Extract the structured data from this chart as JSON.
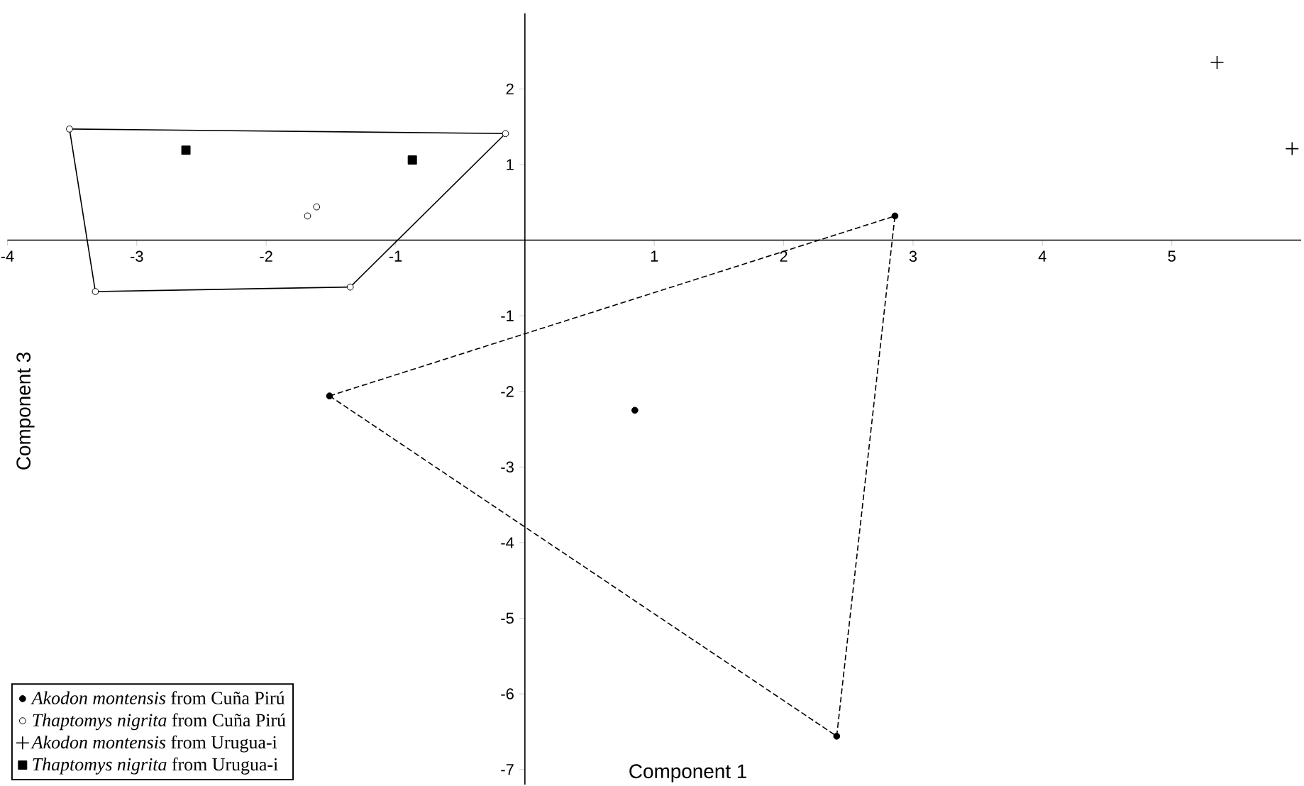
{
  "chart_data": {
    "type": "scatter",
    "xlabel": "Component 1",
    "ylabel": "Component 3",
    "xlim": [
      -4,
      6
    ],
    "ylim": [
      -7.2,
      3
    ],
    "xticks": [
      -4,
      -3,
      -2,
      -1,
      1,
      2,
      3,
      4,
      5
    ],
    "yticks": [
      -7,
      -6,
      -5,
      -4,
      -3,
      -2,
      -1,
      1,
      2
    ],
    "legend": "bottom left",
    "grid": false,
    "series": [
      {
        "name": "*Akodon montensis* from Cuña Pirú",
        "marker": "circle",
        "color": "#000000",
        "x": [
          2.86,
          -1.51,
          0.85,
          2.41
        ],
        "values": [
          0.32,
          -2.06,
          -2.25,
          -6.56
        ]
      },
      {
        "name": "*Thaptomys nigrita* from Cuña Pirú",
        "marker": "circle",
        "color": "#ffffff",
        "x": [
          -3.52,
          -0.15,
          -3.32,
          -1.35,
          -1.68,
          -1.61
        ],
        "values": [
          1.47,
          1.41,
          -0.68,
          -0.62,
          0.32,
          0.44
        ]
      },
      {
        "name": "*Akodon montensis* from Urugua-i",
        "marker": "cross",
        "color": "#000000",
        "x": [
          5.35,
          5.93
        ],
        "values": [
          2.35,
          1.21
        ]
      },
      {
        "name": "*Thaptomys nigrita*  from Urugua-i",
        "marker": "square",
        "color": "#000000",
        "x": [
          -2.62,
          -0.87
        ],
        "values": [
          1.19,
          1.06
        ]
      },
      {
        "type": "line",
        "line_style": "dashed",
        "color": "#000000",
        "x": [
          -1.51,
          2.86
        ],
        "values": [
          -2.06,
          0.32
        ]
      },
      {
        "type": "line",
        "line_style": "dashed",
        "color": "#000000",
        "x": [
          -1.51,
          2.41
        ],
        "values": [
          -2.06,
          -6.56
        ]
      },
      {
        "type": "line",
        "line_style": "dashed",
        "color": "#000000",
        "x": [
          2.41,
          2.86
        ],
        "values": [
          -6.56,
          0.32
        ]
      },
      {
        "type": "line",
        "line_style": "solid",
        "color": "#000000",
        "x": [
          -3.52,
          -0.15
        ],
        "values": [
          1.47,
          1.41
        ]
      },
      {
        "type": "line",
        "line_style": "solid",
        "color": "#000000",
        "x": [
          -1.35,
          -0.15
        ],
        "values": [
          -0.62,
          1.41
        ]
      },
      {
        "type": "line",
        "line_style": "solid",
        "color": "#000000",
        "x": [
          -3.32,
          -1.35
        ],
        "values": [
          -0.68,
          -0.62
        ]
      },
      {
        "type": "line",
        "line_style": "solid",
        "color": "#000000",
        "x": [
          -3.52,
          -3.32
        ],
        "values": [
          1.47,
          -0.68
        ]
      }
    ]
  }
}
